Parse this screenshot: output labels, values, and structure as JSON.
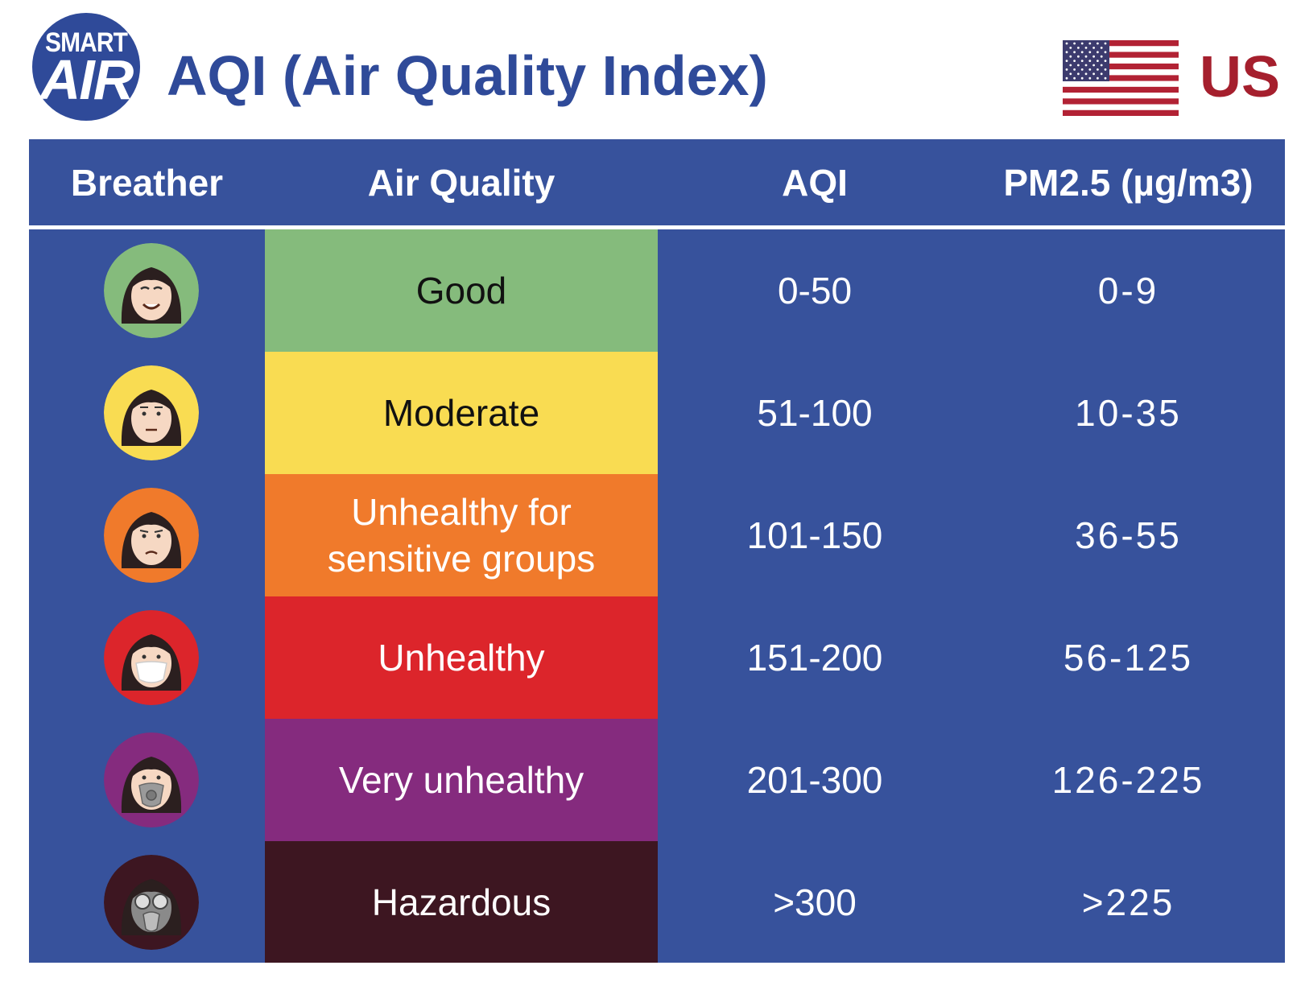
{
  "brand": {
    "logo_line1": "SMART",
    "logo_line2": "AIR",
    "logo_color": "#2f4a99"
  },
  "title": "AQI (Air Quality Index)",
  "country": {
    "label": "US",
    "flag_icon": "us-flag-icon",
    "label_color": "#a51f2d"
  },
  "table": {
    "background": "#37529c",
    "headers": {
      "breather": "Breather",
      "quality": "Air Quality",
      "aqi": "AQI",
      "pm": "PM2.5 (µg/m3)"
    },
    "rows": [
      {
        "quality": "Good",
        "aqi": "0-50",
        "pm": "0-9",
        "color": "#85bb7c",
        "text_color": "#111111",
        "icon": "happy-face-icon"
      },
      {
        "quality": "Moderate",
        "aqi": "51-100",
        "pm": "10-35",
        "color": "#f9dc52",
        "text_color": "#111111",
        "icon": "neutral-face-icon"
      },
      {
        "quality": "Unhealthy for sensitive groups",
        "aqi": "101-150",
        "pm": "36-55",
        "color": "#f07a2b",
        "text_color": "#ffffff",
        "icon": "unhappy-face-icon"
      },
      {
        "quality": "Unhealthy",
        "aqi": "151-200",
        "pm": "56-125",
        "color": "#dc252b",
        "text_color": "#ffffff",
        "icon": "face-mask-icon"
      },
      {
        "quality": "Very unhealthy",
        "aqi": "201-300",
        "pm": "126-225",
        "color": "#852b7e",
        "text_color": "#ffffff",
        "icon": "respirator-face-icon"
      },
      {
        "quality": "Hazardous",
        "aqi": ">300",
        "pm": ">225",
        "color": "#3d1621",
        "text_color": "#ffffff",
        "icon": "gas-mask-face-icon"
      }
    ]
  }
}
